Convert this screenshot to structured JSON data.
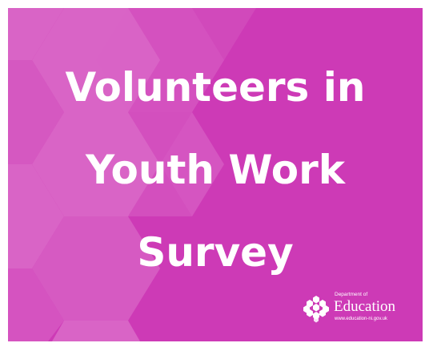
{
  "banner": {
    "background_color": "#cd3ab6",
    "pattern_color": "#dc6cc9",
    "title_lines": [
      "Volunteers in",
      "Youth Work",
      "Survey"
    ]
  },
  "logo": {
    "icon": "hexagon-cluster-icon",
    "small_text": "Department of",
    "main_text": "Education",
    "url_text": "www.education-ni.gov.uk"
  }
}
